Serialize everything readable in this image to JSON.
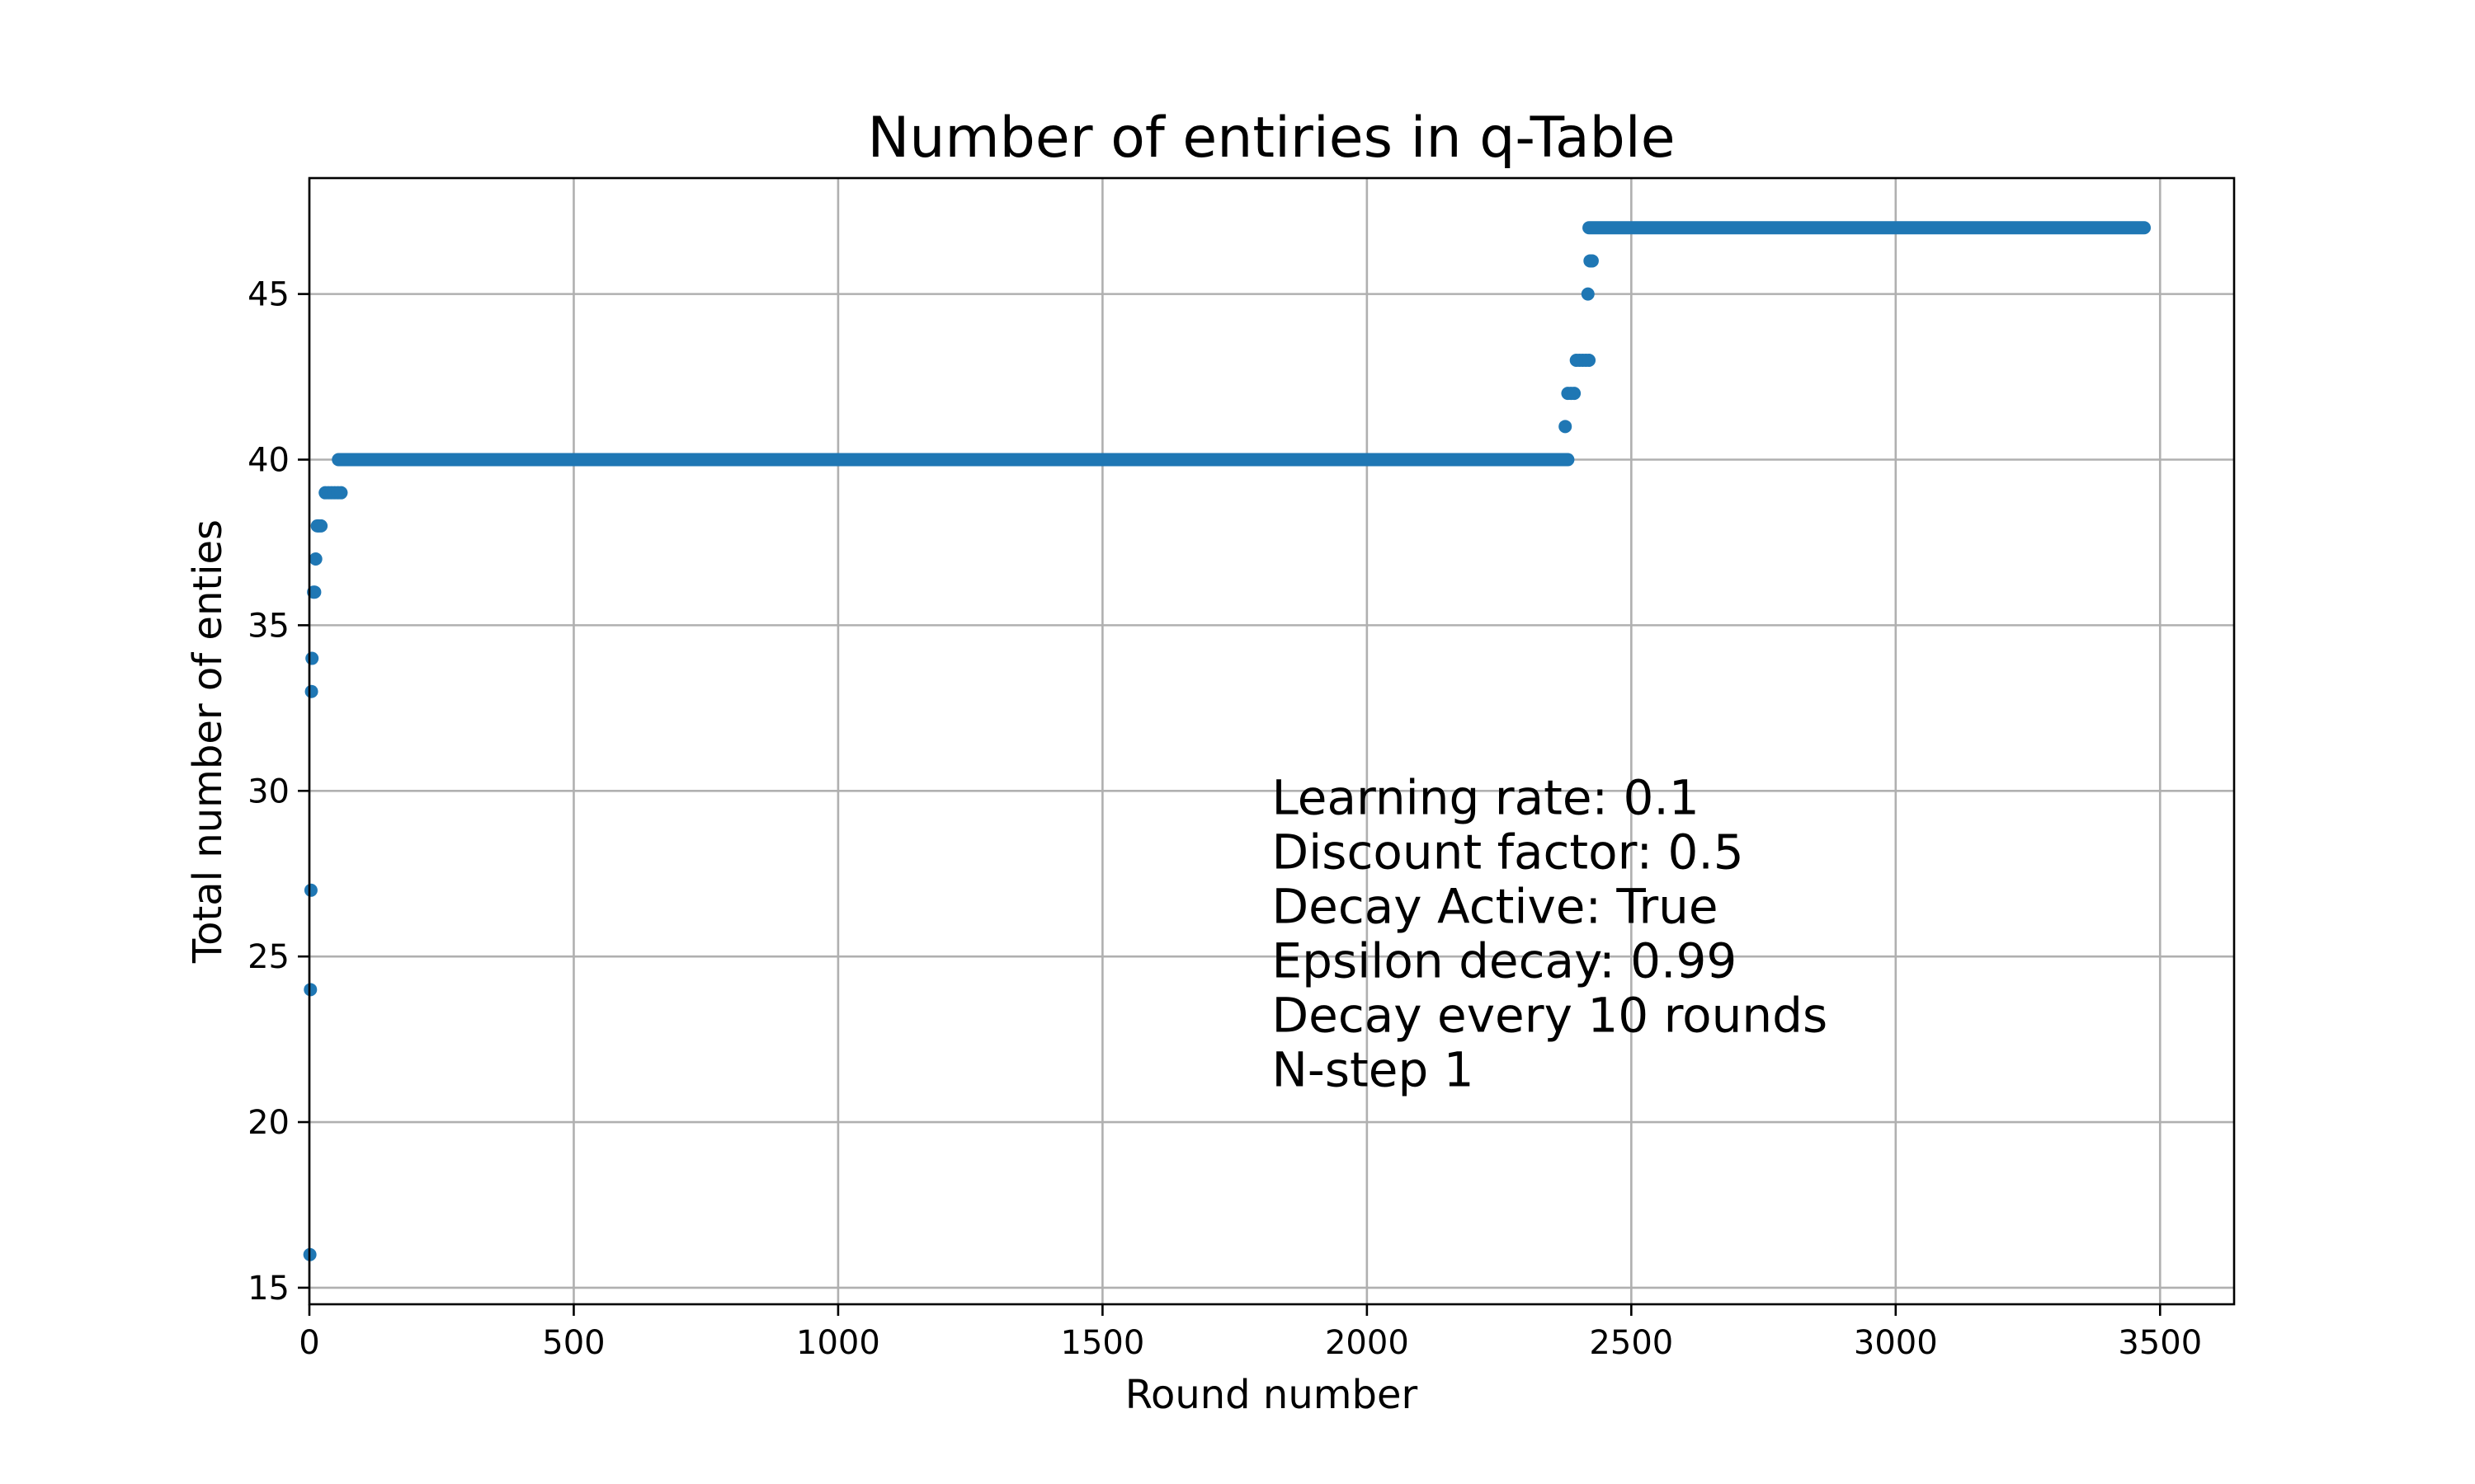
{
  "chart_data": {
    "type": "scatter",
    "title": "Number of entiries in q-Table",
    "xlabel": "Round number",
    "ylabel": "Total number of enties",
    "xlim": [
      0,
      3640
    ],
    "ylim": [
      14.5,
      48.5
    ],
    "xticks": [
      0,
      500,
      1000,
      1500,
      2000,
      2500,
      3000,
      3500
    ],
    "yticks": [
      15,
      20,
      25,
      30,
      35,
      40,
      45
    ],
    "grid": true,
    "marker_color": "#1f77b4",
    "series": [
      {
        "points": [
          [
            1,
            16
          ],
          [
            2,
            24
          ],
          [
            3,
            27
          ],
          [
            4,
            33
          ],
          [
            5,
            34
          ],
          [
            8,
            36
          ],
          [
            10,
            36
          ],
          [
            12,
            37
          ],
          [
            15,
            38
          ],
          [
            18,
            38
          ],
          [
            22,
            38
          ],
          [
            30,
            39
          ],
          [
            36,
            39
          ],
          [
            42,
            39
          ],
          [
            48,
            39
          ],
          [
            54,
            39
          ],
          [
            60,
            39
          ],
          [
            2375,
            41
          ],
          [
            2380,
            42
          ],
          [
            2386,
            42
          ],
          [
            2392,
            42
          ],
          [
            2396,
            43
          ],
          [
            2402,
            43
          ],
          [
            2408,
            43
          ],
          [
            2414,
            43
          ],
          [
            2420,
            43
          ],
          [
            2418,
            45
          ],
          [
            2422,
            46
          ],
          [
            2426,
            46
          ]
        ],
        "segments": [
          {
            "x_start": 55,
            "x_end": 2380,
            "y": 40
          },
          {
            "x_start": 2420,
            "x_end": 3470,
            "y": 47
          }
        ]
      }
    ],
    "annotation": [
      "Learning rate: 0.1",
      "Discount factor: 0.5",
      "Decay Active: True",
      "Epsilon decay: 0.99",
      "Decay every 10 rounds",
      "N-step 1"
    ]
  }
}
